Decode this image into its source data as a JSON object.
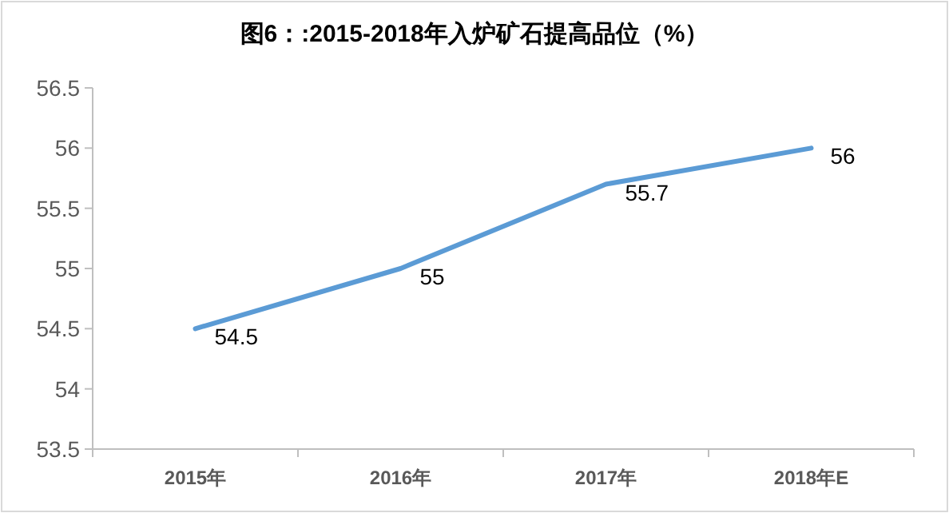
{
  "chart_data": {
    "type": "line",
    "title": "图6：:2015-2018年入炉矿石提高品位（%）",
    "categories": [
      "2015年",
      "2016年",
      "2017年",
      "2018年E"
    ],
    "series": [
      {
        "color": "#5b9bd5",
        "values": [
          54.5,
          55,
          55.7,
          56
        ]
      }
    ],
    "ylim": [
      53.5,
      56.5
    ],
    "yticks": [
      53.5,
      54,
      54.5,
      55,
      55.5,
      56,
      56.5
    ],
    "data_labels": true,
    "grid": false,
    "marker": "none",
    "line_style": "solid"
  }
}
